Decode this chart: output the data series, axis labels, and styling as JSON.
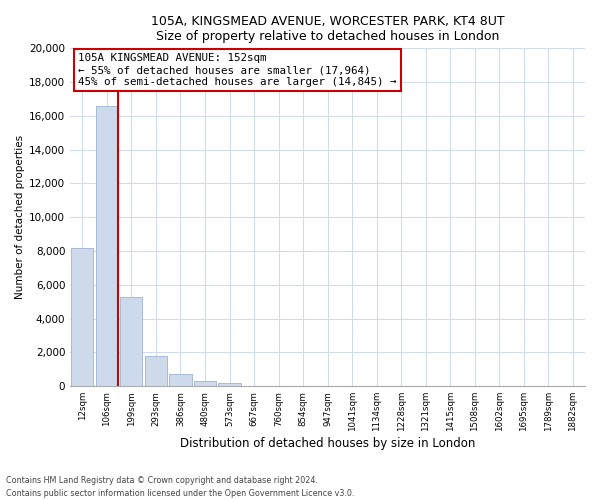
{
  "title1": "105A, KINGSMEAD AVENUE, WORCESTER PARK, KT4 8UT",
  "title2": "Size of property relative to detached houses in London",
  "xlabel": "Distribution of detached houses by size in London",
  "ylabel": "Number of detached properties",
  "bar_labels": [
    "12sqm",
    "106sqm",
    "199sqm",
    "293sqm",
    "386sqm",
    "480sqm",
    "573sqm",
    "667sqm",
    "760sqm",
    "854sqm",
    "947sqm",
    "1041sqm",
    "1134sqm",
    "1228sqm",
    "1321sqm",
    "1415sqm",
    "1508sqm",
    "1602sqm",
    "1695sqm",
    "1789sqm",
    "1882sqm"
  ],
  "bar_values": [
    8200,
    16600,
    5300,
    1800,
    750,
    280,
    200,
    0,
    0,
    0,
    0,
    0,
    0,
    0,
    0,
    0,
    0,
    0,
    0,
    0,
    0
  ],
  "bar_color": "#cddaeb",
  "bar_edge_color": "#a8bcd4",
  "red_line_x": 1.45,
  "annotation_title": "105A KINGSMEAD AVENUE: 152sqm",
  "annotation_line1": "← 55% of detached houses are smaller (17,964)",
  "annotation_line2": "45% of semi-detached houses are larger (14,845) →",
  "red_line_color": "#cc0000",
  "annotation_box_facecolor": "#ffffff",
  "annotation_box_edgecolor": "#cc0000",
  "ylim": [
    0,
    20000
  ],
  "yticks": [
    0,
    2000,
    4000,
    6000,
    8000,
    10000,
    12000,
    14000,
    16000,
    18000,
    20000
  ],
  "grid_color": "#d0dce8",
  "footer1": "Contains HM Land Registry data © Crown copyright and database right 2024.",
  "footer2": "Contains public sector information licensed under the Open Government Licence v3.0."
}
